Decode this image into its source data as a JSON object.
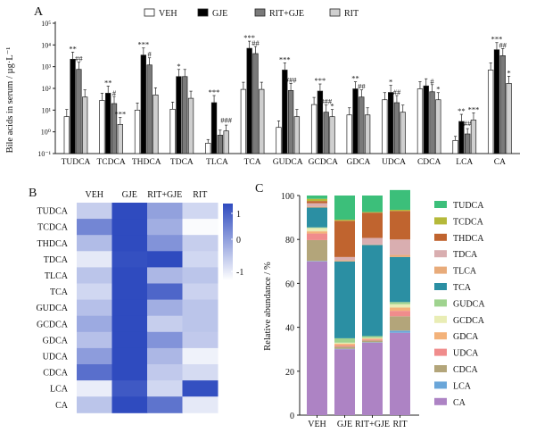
{
  "panels": {
    "a": "A",
    "b": "B",
    "c": "C"
  },
  "chart_data": [
    {
      "type": "bar",
      "panel": "A",
      "title": "",
      "xlabel": "",
      "ylabel": "Bile acids in serum / µg·L⁻¹",
      "yscale": "log",
      "ylim": [
        0.1,
        100000
      ],
      "yticks": [
        "10⁻¹",
        "10⁰",
        "10¹",
        "10²",
        "10³",
        "10⁴",
        "10⁵"
      ],
      "legend": [
        "VEH",
        "GJE",
        "RIT+GJE",
        "RIT"
      ],
      "colors": [
        "#ffffff",
        "#000000",
        "#7a7a7a",
        "#cfcfcf"
      ],
      "categories": [
        "TUDCA",
        "TCDCA",
        "THDCA",
        "TDCA",
        "TLCA",
        "TCA",
        "GUDCA",
        "GCDCA",
        "GDCA",
        "UDCA",
        "CDCA",
        "LCA",
        "CA"
      ],
      "series": [
        {
          "name": "VEH",
          "values": [
            5,
            28,
            10,
            11,
            0.3,
            90,
            1.6,
            18,
            6,
            30,
            95,
            0.4,
            700
          ]
        },
        {
          "name": "GJE",
          "values": [
            2200,
            60,
            3400,
            350,
            22,
            7000,
            700,
            75,
            95,
            65,
            130,
            3,
            6000
          ]
        },
        {
          "name": "RIT+GJE",
          "values": [
            750,
            20,
            1200,
            350,
            0.7,
            4000,
            80,
            8,
            40,
            22,
            70,
            0.8,
            3200
          ]
        },
        {
          "name": "RIT",
          "values": [
            40,
            2.2,
            50,
            35,
            1.1,
            90,
            5,
            5,
            6,
            8,
            30,
            3.5,
            170
          ]
        }
      ],
      "annotations": [
        {
          "category": "TUDCA",
          "series": "GJE",
          "text": "**"
        },
        {
          "category": "TUDCA",
          "series": "RIT+GJE",
          "text": "##"
        },
        {
          "category": "TCDCA",
          "series": "GJE",
          "text": "**"
        },
        {
          "category": "TCDCA",
          "series": "RIT+GJE",
          "text": "#"
        },
        {
          "category": "TCDCA",
          "series": "RIT",
          "text": "***"
        },
        {
          "category": "THDCA",
          "series": "GJE",
          "text": "***"
        },
        {
          "category": "THDCA",
          "series": "RIT+GJE",
          "text": "#"
        },
        {
          "category": "TDCA",
          "series": "GJE",
          "text": "*"
        },
        {
          "category": "TLCA",
          "series": "GJE",
          "text": "***"
        },
        {
          "category": "TLCA",
          "series": "RIT",
          "text": "###"
        },
        {
          "category": "TCA",
          "series": "GJE",
          "text": "***"
        },
        {
          "category": "TCA",
          "series": "RIT+GJE",
          "text": "##"
        },
        {
          "category": "GUDCA",
          "series": "GJE",
          "text": "***"
        },
        {
          "category": "GUDCA",
          "series": "RIT+GJE",
          "text": "###"
        },
        {
          "category": "GCDCA",
          "series": "GJE",
          "text": "***"
        },
        {
          "category": "GCDCA",
          "series": "RIT+GJE",
          "text": "###"
        },
        {
          "category": "GCDCA",
          "series": "RIT",
          "text": "*"
        },
        {
          "category": "GDCA",
          "series": "GJE",
          "text": "**"
        },
        {
          "category": "GDCA",
          "series": "RIT+GJE",
          "text": "##"
        },
        {
          "category": "UDCA",
          "series": "GJE",
          "text": "*"
        },
        {
          "category": "UDCA",
          "series": "RIT+GJE",
          "text": "##"
        },
        {
          "category": "CDCA",
          "series": "RIT+GJE",
          "text": "#"
        },
        {
          "category": "CDCA",
          "series": "RIT",
          "text": "*"
        },
        {
          "category": "LCA",
          "series": "GJE",
          "text": "**"
        },
        {
          "category": "LCA",
          "series": "RIT+GJE",
          "text": "##"
        },
        {
          "category": "LCA",
          "series": "RIT",
          "text": "***"
        },
        {
          "category": "CA",
          "series": "GJE",
          "text": "***"
        },
        {
          "category": "CA",
          "series": "RIT+GJE",
          "text": "##"
        },
        {
          "category": "CA",
          "series": "RIT",
          "text": "*"
        }
      ]
    },
    {
      "type": "heatmap",
      "panel": "B",
      "columns": [
        "VEH",
        "GJE",
        "RIT+GJE",
        "RIT"
      ],
      "rows": [
        "TUDCA",
        "TCDCA",
        "THDCA",
        "TDCA",
        "TLCA",
        "TCA",
        "GUDCA",
        "GCDCA",
        "GDCA",
        "UDCA",
        "CDCA",
        "LCA",
        "CA"
      ],
      "values": [
        [
          -0.45,
          1.45,
          0.05,
          -0.55
        ],
        [
          0.35,
          1.4,
          -0.1,
          -0.95
        ],
        [
          -0.25,
          1.45,
          0.2,
          -0.45
        ],
        [
          -0.75,
          0.95,
          1.1,
          -0.55
        ],
        [
          -0.35,
          1.45,
          -0.2,
          -0.35
        ],
        [
          -0.55,
          1.35,
          0.7,
          -0.5
        ],
        [
          -0.3,
          1.45,
          -0.1,
          -0.35
        ],
        [
          -0.05,
          1.45,
          -0.45,
          -0.35
        ],
        [
          -0.3,
          1.45,
          0.2,
          -0.4
        ],
        [
          0.1,
          1.45,
          -0.2,
          -0.85
        ],
        [
          0.6,
          1.2,
          -0.4,
          -0.6
        ],
        [
          -0.8,
          0.85,
          -0.55,
          0.95
        ],
        [
          -0.35,
          1.35,
          0.55,
          -0.75
        ]
      ],
      "colorbar": {
        "ticks": [
          "1",
          "0",
          "-1"
        ],
        "range": [
          -1,
          1
        ],
        "low_color": "#ffffff",
        "high_color": "#2f4bbf"
      }
    },
    {
      "type": "bar",
      "stacked": true,
      "panel": "C",
      "title": "",
      "xlabel": "",
      "ylabel": "Relative abundance / %",
      "ylim": [
        0,
        100
      ],
      "yticks": [
        "0",
        "20",
        "40",
        "60",
        "80",
        "100"
      ],
      "categories": [
        "VEH",
        "GJE",
        "RIT+GJE",
        "RIT"
      ],
      "legend": [
        "TUDCA",
        "TCDCA",
        "THDCA",
        "TDCA",
        "TLCA",
        "TCA",
        "GUDCA",
        "GCDCA",
        "GDCA",
        "UDCA",
        "CDCA",
        "LCA",
        "CA"
      ],
      "colors": {
        "CA": "#ad83c4",
        "LCA": "#6aa6d9",
        "CDCA": "#b3a57a",
        "UDCA": "#f08c8c",
        "GDCA": "#f3b27a",
        "GCDCA": "#e9edb5",
        "GUDCA": "#9fd38f",
        "TCA": "#2b8fa3",
        "TLCA": "#e8ab7a",
        "TDCA": "#d9aeb0",
        "THDCA": "#c0642f",
        "TCDCA": "#b5b93a",
        "TUDCA": "#3cbf7a"
      },
      "stack_order": [
        "CA",
        "LCA",
        "CDCA",
        "UDCA",
        "GDCA",
        "GCDCA",
        "GUDCA",
        "TCA",
        "TLCA",
        "TDCA",
        "THDCA",
        "TCDCA",
        "TUDCA"
      ],
      "series": [
        {
          "name": "CA",
          "values": [
            70,
            30,
            33,
            37.5
          ]
        },
        {
          "name": "LCA",
          "values": [
            0.2,
            0.2,
            0.2,
            1
          ]
        },
        {
          "name": "CDCA",
          "values": [
            9.5,
            1,
            0.8,
            6.5
          ]
        },
        {
          "name": "UDCA",
          "values": [
            3,
            0.5,
            0.4,
            2.5
          ]
        },
        {
          "name": "GDCA",
          "values": [
            1,
            0.8,
            0.5,
            1.5
          ]
        },
        {
          "name": "GCDCA",
          "values": [
            1.5,
            0.5,
            0.3,
            1.5
          ]
        },
        {
          "name": "GUDCA",
          "values": [
            0.3,
            2,
            0.8,
            1
          ]
        },
        {
          "name": "TCA",
          "values": [
            9,
            35,
            41.5,
            20.5
          ]
        },
        {
          "name": "TLCA",
          "values": [
            0.5,
            0.5,
            0.2,
            1
          ]
        },
        {
          "name": "TDCA",
          "values": [
            1.5,
            1.5,
            3,
            7
          ]
        },
        {
          "name": "THDCA",
          "values": [
            1,
            16.5,
            11.5,
            13
          ]
        },
        {
          "name": "TCDCA",
          "values": [
            1,
            0.5,
            0.3,
            0.5
          ]
        },
        {
          "name": "TUDCA",
          "values": [
            1.5,
            11,
            7.5,
            9
          ]
        }
      ]
    }
  ]
}
